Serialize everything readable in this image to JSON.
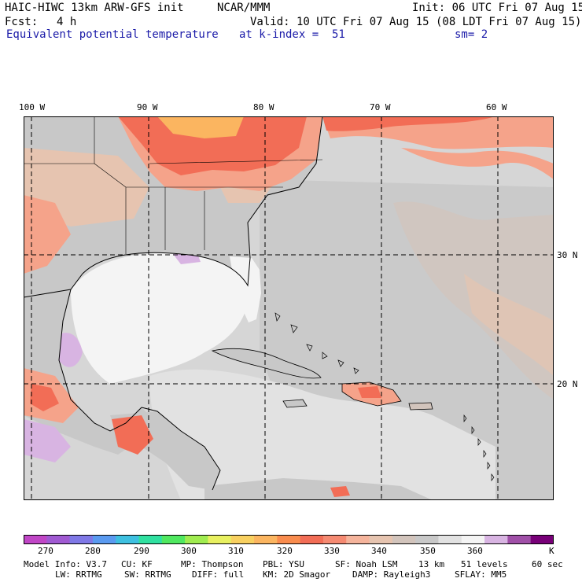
{
  "header": {
    "model": "HAIC-HIWC 13km ARW-GFS init",
    "org": "NCAR/MMM",
    "init": "Init: 06 UTC Fri 07 Aug 15",
    "fcst_label": "Fcst:",
    "fcst_value": "4 h",
    "valid": "Valid: 10 UTC Fri 07 Aug 15 (08 LDT Fri 07 Aug 15)",
    "field": "Equivalent potential temperature",
    "level": "at k-index =  51",
    "smooth": "sm= 2"
  },
  "map": {
    "lon_labels": [
      "100 W",
      "90 W",
      "80 W",
      "70 W",
      "60 W"
    ],
    "lat_labels": [
      "30 N",
      "20 N"
    ],
    "colors": {
      "land_gray": "#c8c8c8",
      "ocean_light": "#e6e6e6",
      "gulf_white": "#f4f4f4",
      "tan": "#e6c4b0",
      "salmon": "#f5a38a",
      "red": "#f26d56",
      "orange": "#fbb560",
      "purple_light": "#d8b4e2"
    }
  },
  "colorbar": {
    "colors": [
      "#c046c6",
      "#a05ad2",
      "#7f78e6",
      "#5a9af0",
      "#3ec0e0",
      "#30e0a0",
      "#50e860",
      "#a0ec50",
      "#e8f060",
      "#f8d060",
      "#fbb560",
      "#f98c4e",
      "#f26d56",
      "#f58a72",
      "#f5b49c",
      "#e6c4b0",
      "#d2c4bc",
      "#c8c8c8",
      "#e2e2e2",
      "#f4f4f4",
      "#d8b4e2",
      "#a050a8",
      "#780078"
    ],
    "ticks": [
      "270",
      "280",
      "290",
      "300",
      "310",
      "320",
      "330",
      "340",
      "350",
      "360"
    ],
    "unit": "K"
  },
  "footer": {
    "model_info": "Model Info: V3.7",
    "cu": "CU: KF",
    "mp": "MP: Thompson",
    "pbl": "PBL: YSU",
    "sf": "SF: Noah LSM",
    "res": "13 km",
    "levels": "51 levels",
    "dt": "60 sec",
    "lw": "LW: RRTMG",
    "sw": "SW: RRTMG",
    "diff": "DIFF: full",
    "km": "KM: 2D Smagor",
    "damp": "DAMP: Rayleigh3",
    "sflay": "SFLAY: MM5"
  }
}
